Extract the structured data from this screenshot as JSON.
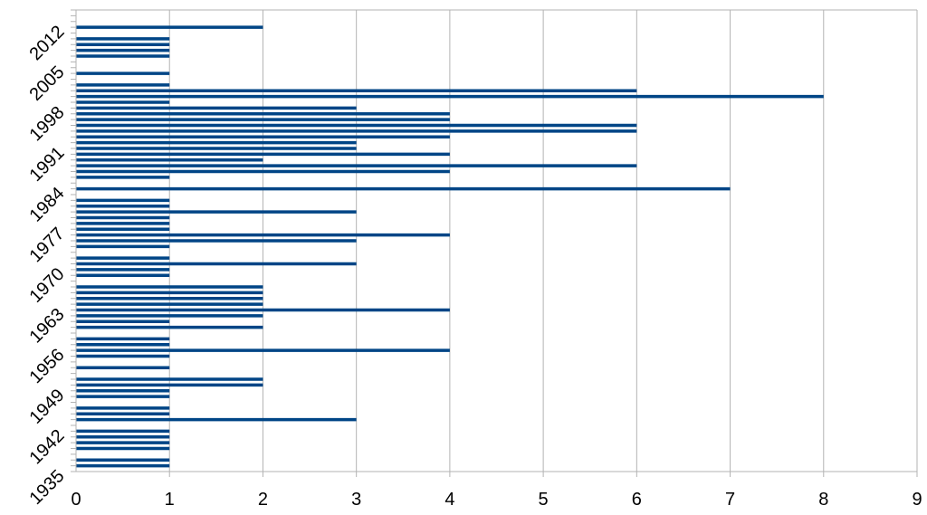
{
  "chart_data": {
    "type": "bar",
    "orientation": "horizontal",
    "title": "",
    "xlabel": "",
    "ylabel": "",
    "xlim": [
      0,
      9
    ],
    "x_ticks": [
      "0",
      "1",
      "2",
      "3",
      "4",
      "5",
      "6",
      "7",
      "8",
      "9"
    ],
    "y_range": [
      1935,
      2015
    ],
    "y_tick_labels": [
      "1935",
      "1942",
      "1949",
      "1956",
      "1963",
      "1970",
      "1977",
      "1984",
      "1991",
      "1998",
      "2005",
      "2012"
    ],
    "grid": "vertical",
    "legend": "none",
    "colors": {
      "bar": "#004586",
      "grid": "#b3b3b3",
      "axis": "#b3b3b3"
    },
    "categories": [
      1935,
      1936,
      1937,
      1938,
      1939,
      1940,
      1941,
      1942,
      1943,
      1944,
      1945,
      1946,
      1947,
      1948,
      1949,
      1950,
      1951,
      1952,
      1953,
      1954,
      1955,
      1956,
      1957,
      1958,
      1959,
      1960,
      1961,
      1962,
      1963,
      1964,
      1965,
      1966,
      1967,
      1968,
      1969,
      1970,
      1971,
      1972,
      1973,
      1974,
      1975,
      1976,
      1977,
      1978,
      1979,
      1980,
      1981,
      1982,
      1983,
      1984,
      1985,
      1986,
      1987,
      1988,
      1989,
      1990,
      1991,
      1992,
      1993,
      1994,
      1995,
      1996,
      1997,
      1998,
      1999,
      2000,
      2001,
      2002,
      2003,
      2004,
      2005,
      2006,
      2007,
      2008,
      2009,
      2010,
      2011,
      2012,
      2013,
      2014,
      2015
    ],
    "values": [
      0,
      1,
      1,
      0,
      1,
      1,
      1,
      1,
      0,
      3,
      1,
      1,
      0,
      1,
      1,
      2,
      2,
      0,
      1,
      0,
      1,
      4,
      1,
      1,
      0,
      2,
      1,
      2,
      4,
      2,
      2,
      2,
      2,
      0,
      1,
      1,
      3,
      1,
      0,
      1,
      3,
      4,
      1,
      1,
      1,
      3,
      1,
      1,
      0,
      7,
      0,
      1,
      4,
      6,
      2,
      4,
      3,
      3,
      4,
      6,
      6,
      4,
      4,
      3,
      1,
      8,
      6,
      1,
      0,
      1,
      0,
      0,
      1,
      1,
      1,
      1,
      0,
      2,
      0,
      0,
      0
    ]
  }
}
